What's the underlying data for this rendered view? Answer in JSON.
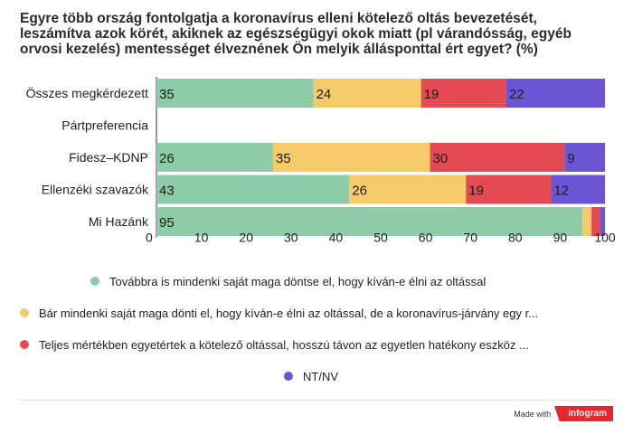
{
  "title": "Egyre több ország fontolgatja a koronavírus elleni kötelező oltás bevezetését, leszámítva azok körét, akiknek az egészségügyi okok miatt (pl  várandósság, egyéb orvosi kezelés) mentességet élveznének  Ön melyik állásponttal ért egyet? (%)",
  "chart_data": {
    "type": "bar",
    "orientation": "horizontal",
    "stacked": true,
    "categories": [
      "Összes megkérdezett",
      "Pártpreferencia",
      "Fidesz–KDNP",
      "Ellenzéki szavazók",
      "Mi Hazánk"
    ],
    "series": [
      {
        "name": "Továbbra is mindenki saját maga döntse el, hogy kíván-e élni az oltással",
        "color": "#8ecba8",
        "values": [
          35,
          null,
          26,
          43,
          95
        ]
      },
      {
        "name": "Bár mindenki saját maga dönti el, hogy kíván-e élni az oltással, de a koronavírus-járvány egy r...",
        "color": "#f5cb6a",
        "values": [
          24,
          null,
          35,
          26,
          2
        ]
      },
      {
        "name": "Teljes mértékben egyetértek a kötelező oltással, hosszú távon az egyetlen hatékony eszköz ...",
        "color": "#e34a52",
        "values": [
          19,
          null,
          30,
          19,
          2
        ]
      },
      {
        "name": "NT/NV",
        "color": "#6a56d4",
        "values": [
          22,
          null,
          9,
          12,
          1
        ]
      }
    ],
    "value_labels": [
      [
        "35",
        "24",
        "19",
        "22"
      ],
      [
        "",
        "",
        "",
        ""
      ],
      [
        "26",
        "35",
        "30",
        "9"
      ],
      [
        "43",
        "26",
        "19",
        "12"
      ],
      [
        "95",
        "",
        "",
        ""
      ]
    ],
    "xlim": [
      0,
      100
    ],
    "xticks": [
      "0",
      "10",
      "20",
      "30",
      "40",
      "50",
      "60",
      "70",
      "80",
      "90",
      "100"
    ],
    "legend_position": "bottom",
    "grid": false
  },
  "footer": {
    "made_with": "Made with",
    "brand": "infogram"
  }
}
